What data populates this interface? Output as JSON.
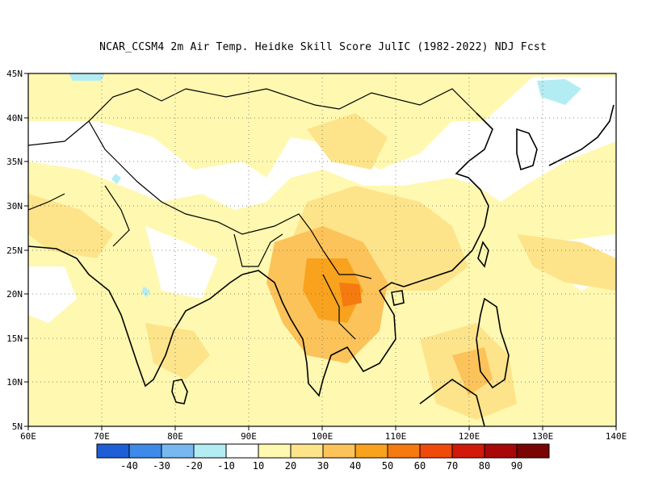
{
  "title": "NCAR_CCSM4  2m Air Temp. Heidke Skill Score JulIC (1982-2022) NDJ Fcst",
  "map": {
    "lon_range": [
      60,
      140
    ],
    "lat_range": [
      5,
      45
    ],
    "x_ticks": [
      "60E",
      "70E",
      "80E",
      "90E",
      "100E",
      "110E",
      "120E",
      "130E",
      "140E"
    ],
    "y_ticks": [
      "5N",
      "10N",
      "15N",
      "20N",
      "25N",
      "30N",
      "35N",
      "40N",
      "45N"
    ],
    "grid": "dotted"
  },
  "colorbar": {
    "colors": [
      "#1f5fd6",
      "#3d8ae8",
      "#78b8f0",
      "#b4ecf4",
      "#ffffff",
      "#fff8b0",
      "#fde48a",
      "#fcc35a",
      "#f9a21e",
      "#f57a10",
      "#ef4a0a",
      "#d21a0a",
      "#a80808",
      "#7a0404"
    ],
    "labels": [
      "-40",
      "-30",
      "-20",
      "-10",
      "10",
      "20",
      "30",
      "40",
      "50",
      "60",
      "70",
      "80",
      "90"
    ]
  }
}
